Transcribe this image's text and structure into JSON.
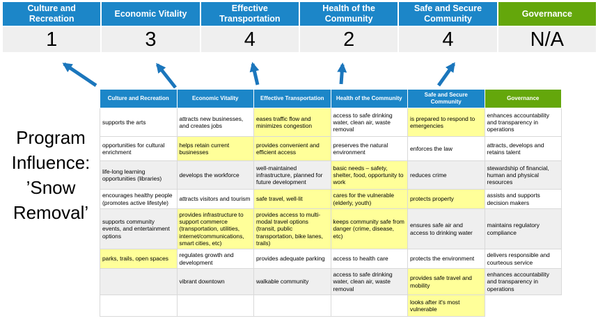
{
  "colors": {
    "header_blue": "#1C86C8",
    "governance_green": "#64A70B",
    "arrow_blue": "#1B76BC",
    "highlight_yellow": "#FFFF99",
    "row_shade_gray": "#EFEFEF",
    "score_cell_gray": "#EFEFEF"
  },
  "program_title": {
    "text": "Program Influence: ’Snow Removal’",
    "lines": [
      "Program",
      "Influence:",
      "’Snow",
      "Removal’"
    ]
  },
  "summary": {
    "columns": [
      {
        "label": "Culture and Recreation",
        "score": "1"
      },
      {
        "label": "Economic Vitality",
        "score": "3"
      },
      {
        "label": "Effective Transportation",
        "score": "4"
      },
      {
        "label": "Health of the Community",
        "score": "2"
      },
      {
        "label": "Safe and Secure Community",
        "score": "4"
      },
      {
        "label": "Governance",
        "score": "N/A"
      }
    ]
  },
  "matrix": {
    "headers": [
      {
        "label": "Culture and Recreation",
        "theme": "blue"
      },
      {
        "label": "Economic Vitality",
        "theme": "blue"
      },
      {
        "label": "Effective Transportation",
        "theme": "blue"
      },
      {
        "label": "Health of the Community",
        "theme": "blue"
      },
      {
        "label": "Safe and Secure Community",
        "theme": "blue"
      },
      {
        "label": "Governance",
        "theme": "green"
      }
    ],
    "row_shades": [
      "white",
      "white",
      "gray",
      "white",
      "gray",
      "white",
      "gray",
      "white"
    ],
    "rows": [
      [
        {
          "t": "supports the arts",
          "h": false
        },
        {
          "t": "attracts new businesses, and creates jobs",
          "h": false
        },
        {
          "t": "eases traffic flow and minimizes congestion",
          "h": true
        },
        {
          "t": "access to safe drinking water, clean air, waste removal",
          "h": false
        },
        {
          "t": "is prepared to respond to emergencies",
          "h": true
        },
        {
          "t": "enhances accountability and transparency in operations",
          "h": false
        }
      ],
      [
        {
          "t": "opportunities for cultural enrichment",
          "h": false
        },
        {
          "t": "helps retain current businesses",
          "h": true
        },
        {
          "t": "provides convenient and efficient access",
          "h": true
        },
        {
          "t": "preserves the natural environment",
          "h": false
        },
        {
          "t": "enforces the law",
          "h": false
        },
        {
          "t": "attracts, develops and retains talent",
          "h": false
        }
      ],
      [
        {
          "t": "life-long learning opportunities (libraries)",
          "h": false
        },
        {
          "t": "develops the workforce",
          "h": false
        },
        {
          "t": "well-maintained infrastructure, planned for future development",
          "h": false
        },
        {
          "t": "basic needs – safety, shelter, food, opportunity to work",
          "h": true
        },
        {
          "t": "reduces crime",
          "h": false
        },
        {
          "t": "stewardship of financial, human and physical resources",
          "h": false
        }
      ],
      [
        {
          "t": "encourages healthy people (promotes active lifestyle)",
          "h": false
        },
        {
          "t": "attracts visitors and tourism",
          "h": false
        },
        {
          "t": "safe travel, well-lit",
          "h": true
        },
        {
          "t": "cares for the vulnerable (elderly, youth)",
          "h": true
        },
        {
          "t": "protects property",
          "h": true
        },
        {
          "t": "assists and supports decision makers",
          "h": false
        }
      ],
      [
        {
          "t": "supports community events, and entertainment options",
          "h": false
        },
        {
          "t": "provides infrastructure to support commerce (transportation, utilities, internet/communications, smart cities, etc)",
          "h": true
        },
        {
          "t": "provides access to multi-modal travel options (transit, public transportation, bike lanes, trails)",
          "h": true
        },
        {
          "t": "keeps community safe from danger (crime, disease, etc)",
          "h": true
        },
        {
          "t": "ensures safe air and access to drinking water",
          "h": false
        },
        {
          "t": "maintains regulatory compliance",
          "h": false
        }
      ],
      [
        {
          "t": "parks, trails, open spaces",
          "h": true
        },
        {
          "t": "regulates growth and development",
          "h": false
        },
        {
          "t": "provides adequate parking",
          "h": false
        },
        {
          "t": "access to health care",
          "h": false
        },
        {
          "t": "protects the environment",
          "h": false
        },
        {
          "t": "delivers responsible and courteous service",
          "h": false
        }
      ],
      [
        {
          "t": "",
          "h": false
        },
        {
          "t": "vibrant downtown",
          "h": false
        },
        {
          "t": "walkable community",
          "h": false
        },
        {
          "t": "access to safe drinking water, clean air, waste removal",
          "h": false
        },
        {
          "t": "provides safe travel and mobility",
          "h": true
        },
        {
          "t": "enhances accountability and transparency in operations",
          "h": false
        }
      ],
      [
        {
          "t": "",
          "h": false
        },
        {
          "t": "",
          "h": false
        },
        {
          "t": "",
          "h": false
        },
        {
          "t": "",
          "h": false
        },
        {
          "t": "looks after it's most vulnerable",
          "h": true
        },
        {
          "t": "",
          "h": false,
          "hidden": true
        }
      ]
    ]
  },
  "arrows": {
    "count": 5
  }
}
